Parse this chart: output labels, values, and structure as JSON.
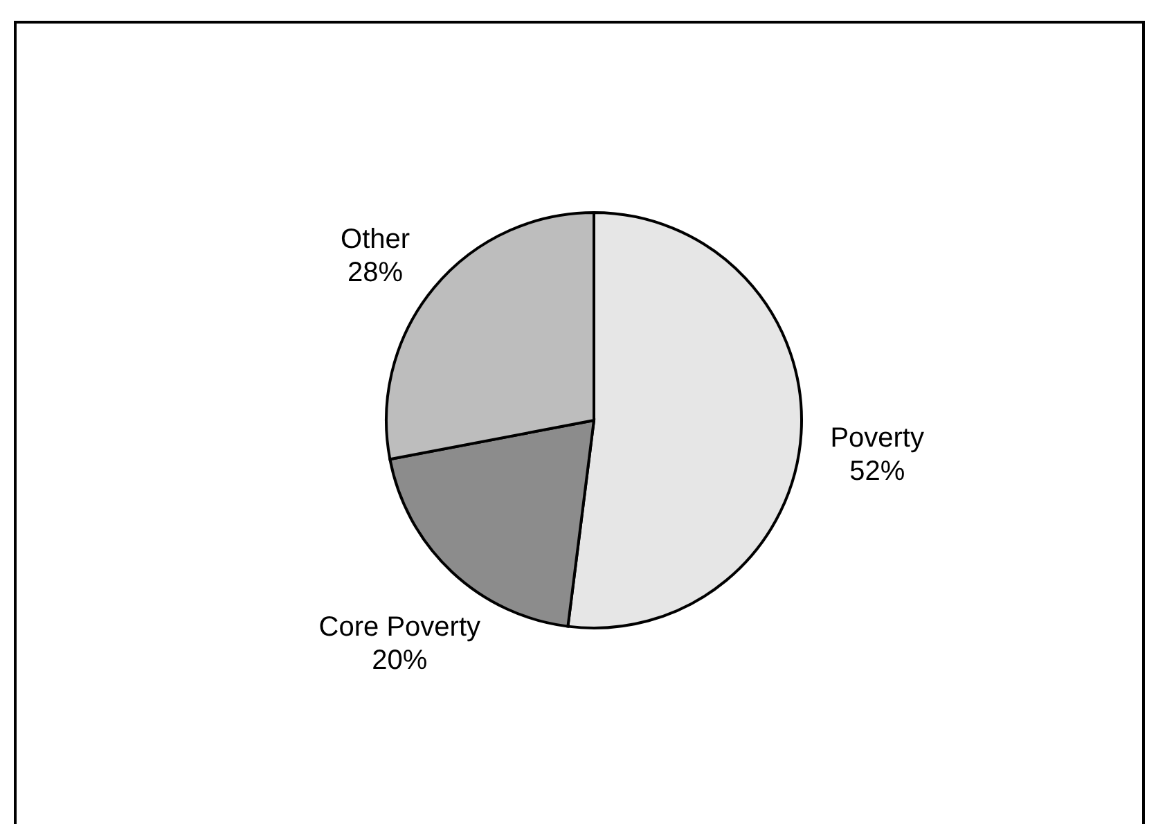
{
  "chart_data": {
    "type": "pie",
    "categories": [
      "Poverty",
      "Core Poverty",
      "Other"
    ],
    "values": [
      52,
      20,
      28
    ],
    "value_labels": [
      "52%",
      "20%",
      "28%"
    ],
    "colors": [
      "#e6e6e6",
      "#8c8c8c",
      "#bdbdbd"
    ]
  }
}
